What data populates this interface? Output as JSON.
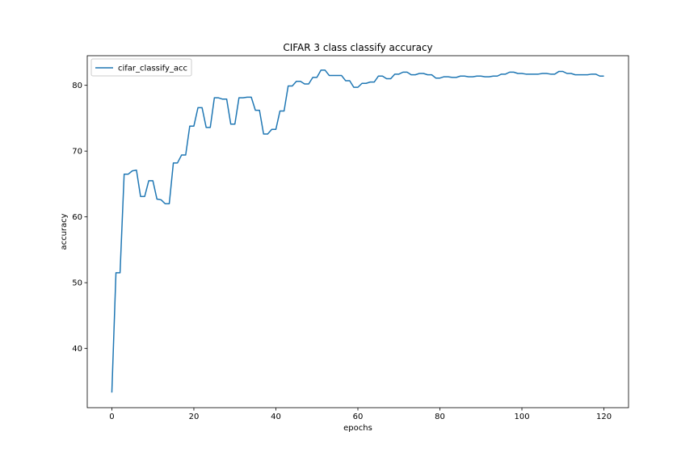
{
  "chart_data": {
    "type": "line",
    "title": "CIFAR 3 class classify accuracy",
    "xlabel": "epochs",
    "ylabel": "accuracy",
    "xlim": [
      -6,
      126
    ],
    "ylim": [
      31.0,
      84.5
    ],
    "xticks": [
      0,
      20,
      40,
      60,
      80,
      100,
      120
    ],
    "yticks": [
      40,
      50,
      60,
      70,
      80
    ],
    "grid": false,
    "legend_position": "top-left",
    "series": [
      {
        "name": "cifar_classify_acc",
        "color": "#1f77b4",
        "x": [
          0,
          1,
          2,
          3,
          4,
          5,
          6,
          7,
          8,
          9,
          10,
          11,
          12,
          13,
          14,
          15,
          16,
          17,
          18,
          19,
          20,
          21,
          22,
          23,
          24,
          25,
          26,
          27,
          28,
          29,
          30,
          31,
          32,
          33,
          34,
          35,
          36,
          37,
          38,
          39,
          40,
          41,
          42,
          43,
          44,
          45,
          46,
          47,
          48,
          49,
          50,
          51,
          52,
          53,
          54,
          55,
          56,
          57,
          58,
          59,
          60,
          61,
          62,
          63,
          64,
          65,
          66,
          67,
          68,
          69,
          70,
          71,
          72,
          73,
          74,
          75,
          76,
          77,
          78,
          79,
          80,
          81,
          82,
          83,
          84,
          85,
          86,
          87,
          88,
          89,
          90,
          91,
          92,
          93,
          94,
          95,
          96,
          97,
          98,
          99,
          100,
          101,
          102,
          103,
          104,
          105,
          106,
          107,
          108,
          109,
          110,
          111,
          112,
          113,
          114,
          115,
          116,
          117,
          118,
          119,
          120
        ],
        "y": [
          33.3,
          51.5,
          51.5,
          66.5,
          66.5,
          67.0,
          67.1,
          63.1,
          63.1,
          65.5,
          65.5,
          62.7,
          62.6,
          62.0,
          62.0,
          68.2,
          68.2,
          69.4,
          69.4,
          73.8,
          73.8,
          76.6,
          76.6,
          73.6,
          73.6,
          78.1,
          78.1,
          77.9,
          77.9,
          74.1,
          74.1,
          78.1,
          78.1,
          78.2,
          78.2,
          76.2,
          76.2,
          72.6,
          72.6,
          73.3,
          73.3,
          76.1,
          76.1,
          79.9,
          79.9,
          80.6,
          80.6,
          80.2,
          80.2,
          81.2,
          81.2,
          82.3,
          82.3,
          81.5,
          81.5,
          81.5,
          81.5,
          80.7,
          80.7,
          79.7,
          79.7,
          80.3,
          80.3,
          80.5,
          80.5,
          81.4,
          81.4,
          81.0,
          81.0,
          81.7,
          81.7,
          82.0,
          82.0,
          81.6,
          81.6,
          81.8,
          81.8,
          81.6,
          81.6,
          81.1,
          81.1,
          81.3,
          81.3,
          81.2,
          81.2,
          81.4,
          81.4,
          81.3,
          81.3,
          81.4,
          81.4,
          81.3,
          81.3,
          81.4,
          81.4,
          81.7,
          81.7,
          82.0,
          82.0,
          81.8,
          81.8,
          81.7,
          81.7,
          81.7,
          81.7,
          81.8,
          81.8,
          81.7,
          81.7,
          82.1,
          82.1,
          81.8,
          81.8,
          81.6,
          81.6,
          81.6,
          81.6,
          81.7,
          81.7,
          81.4,
          81.4
        ]
      }
    ]
  }
}
